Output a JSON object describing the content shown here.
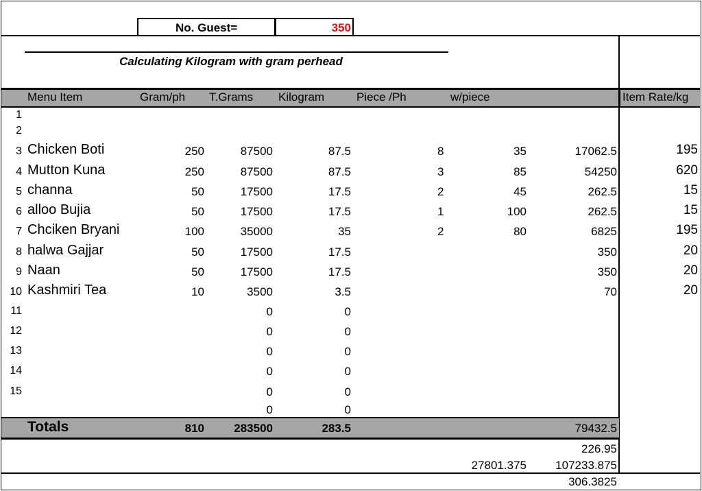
{
  "guest_label": "No. Guest=",
  "guest_value": "350",
  "subtitle": "Calculating Kilogram with gram perhead",
  "headers": {
    "menu_item": "Menu Item",
    "gram_ph": "Gram/ph",
    "t_grams": "T.Grams",
    "kilogram": "Kilogram",
    "piece_ph": "Piece /Ph",
    "w_piece": "w/piece",
    "item_rate": "Item Rate/kg"
  },
  "rows": [
    {
      "n": "1",
      "name": "",
      "gram": "",
      "tgrams": "",
      "kg": "",
      "piece": "",
      "wpiece": "",
      "amount": "",
      "rate": ""
    },
    {
      "n": "2",
      "name": "",
      "gram": "",
      "tgrams": "",
      "kg": "",
      "piece": "",
      "wpiece": "",
      "amount": "",
      "rate": ""
    },
    {
      "n": "3",
      "name": "Chicken Boti",
      "gram": "250",
      "tgrams": "87500",
      "kg": "87.5",
      "piece": "8",
      "wpiece": "35",
      "amount": "17062.5",
      "rate": "195"
    },
    {
      "n": "4",
      "name": "Mutton Kuna",
      "gram": "250",
      "tgrams": "87500",
      "kg": "87.5",
      "piece": "3",
      "wpiece": "85",
      "amount": "54250",
      "rate": "620"
    },
    {
      "n": "5",
      "name": "channa",
      "gram": "50",
      "tgrams": "17500",
      "kg": "17.5",
      "piece": "2",
      "wpiece": "45",
      "amount": "262.5",
      "rate": "15"
    },
    {
      "n": "6",
      "name": "alloo Bujia",
      "gram": "50",
      "tgrams": "17500",
      "kg": "17.5",
      "piece": "1",
      "wpiece": "100",
      "amount": "262.5",
      "rate": "15"
    },
    {
      "n": "7",
      "name": "Chciken Bryani",
      "gram": "100",
      "tgrams": "35000",
      "kg": "35",
      "piece": "2",
      "wpiece": "80",
      "amount": "6825",
      "rate": "195"
    },
    {
      "n": "8",
      "name": "halwa Gajjar",
      "gram": "50",
      "tgrams": "17500",
      "kg": "17.5",
      "piece": "",
      "wpiece": "",
      "amount": "350",
      "rate": "20"
    },
    {
      "n": "9",
      "name": "Naan",
      "gram": "50",
      "tgrams": "17500",
      "kg": "17.5",
      "piece": "",
      "wpiece": "",
      "amount": "350",
      "rate": "20"
    },
    {
      "n": "10",
      "name": "Kashmiri Tea",
      "gram": "10",
      "tgrams": "3500",
      "kg": "3.5",
      "piece": "",
      "wpiece": "",
      "amount": "70",
      "rate": "20"
    },
    {
      "n": "11",
      "name": "",
      "gram": "",
      "tgrams": "0",
      "kg": "0",
      "piece": "",
      "wpiece": "",
      "amount": "",
      "rate": ""
    },
    {
      "n": "12",
      "name": "",
      "gram": "",
      "tgrams": "0",
      "kg": "0",
      "piece": "",
      "wpiece": "",
      "amount": "",
      "rate": ""
    },
    {
      "n": "13",
      "name": "",
      "gram": "",
      "tgrams": "0",
      "kg": "0",
      "piece": "",
      "wpiece": "",
      "amount": "",
      "rate": ""
    },
    {
      "n": "14",
      "name": "",
      "gram": "",
      "tgrams": "0",
      "kg": "0",
      "piece": "",
      "wpiece": "",
      "amount": "",
      "rate": ""
    },
    {
      "n": "15",
      "name": "",
      "gram": "",
      "tgrams": "0",
      "kg": "0",
      "piece": "",
      "wpiece": "",
      "amount": "",
      "rate": ""
    },
    {
      "n": "",
      "name": "",
      "gram": "",
      "tgrams": "0",
      "kg": "0",
      "piece": "",
      "wpiece": "",
      "amount": "",
      "rate": ""
    }
  ],
  "totals": {
    "label": "Totals",
    "gram": "810",
    "tgrams": "283500",
    "kg": "283.5",
    "amount": "79432.5"
  },
  "summary": {
    "line1": "226.95",
    "line2_left": "27801.375",
    "line2_right": "107233.875",
    "line3": "306.3825"
  },
  "colors": {
    "header_bg": "#a6a6a6",
    "guest_value": "#e01010"
  }
}
